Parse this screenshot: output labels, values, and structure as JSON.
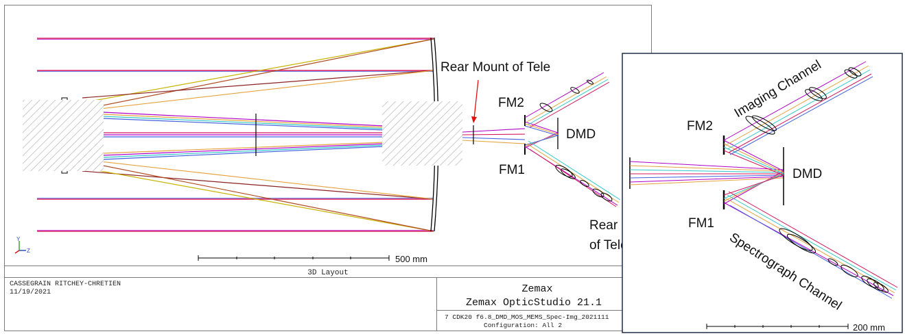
{
  "window": {
    "tab_title": "3D Layout"
  },
  "main_layout": {
    "annotation_rear_mount_tele": "Rear Mount of Tele",
    "label_fm2": "FM2",
    "label_fm1": "FM1",
    "label_dmd": "DMD",
    "label_rear_mount_line1": "Rear Mount",
    "label_rear_mount_line2": "of Telescope",
    "scale_label": "500 mm",
    "axis_y_label": "Y",
    "axis_z_label": "Z"
  },
  "inset": {
    "label_fm2": "FM2",
    "label_fm1": "FM1",
    "label_dmd": "DMD",
    "label_imaging": "Imaging Channel",
    "label_spectrograph": "Spectrograph Channel",
    "scale_label": "200 mm"
  },
  "footer": {
    "title_line1": "CASSEGRAIN RITCHEY-CHRETIEN",
    "date": "11/19/2021",
    "brand": "Zemax",
    "product": "Zemax OpticStudio 21.1",
    "file_line": "7 CDK20 f6.8_DMD_MOS_MEMS_Spec-Img_2021111",
    "config_line": "Configuration: All 2"
  },
  "colors": {
    "frame": "#7a7a7a",
    "ray_red": "#d4145a",
    "ray_magenta": "#b000c8",
    "ray_orange": "#e6a23c",
    "ray_yellow": "#c8b400",
    "ray_blue": "#4060e0",
    "ray_cyan": "#30c8c8",
    "element": "#000000",
    "hatch": "#c8c8c8",
    "arrow_red": "#e01010",
    "inset_border": "#1f2d4a",
    "axis_blue": "#3050c0",
    "axis_green": "#40a040"
  }
}
